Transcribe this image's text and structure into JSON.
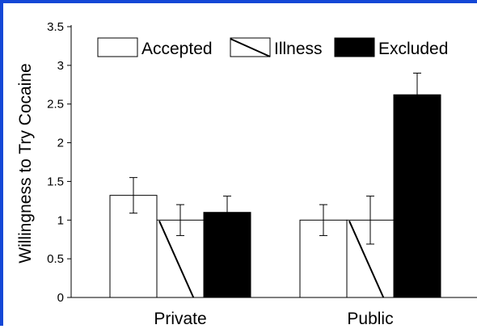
{
  "chart_data": {
    "type": "bar",
    "title": "",
    "xlabel": "",
    "ylabel": "Willingness to Try Cocaine",
    "categories": [
      "Private",
      "Public"
    ],
    "ylim": [
      0,
      3.5
    ],
    "yticks": [
      "0",
      "0.5",
      "1",
      "1.5",
      "2",
      "2.5",
      "3",
      "3.5"
    ],
    "series": [
      {
        "name": "Accepted",
        "values": [
          1.32,
          1.0
        ],
        "errors": [
          0.23,
          0.2
        ],
        "fill": "#ffffff",
        "pattern": "none"
      },
      {
        "name": "Illness",
        "values": [
          1.0,
          1.0
        ],
        "errors": [
          0.2,
          0.31
        ],
        "fill": "#ffffff",
        "pattern": "diagonal"
      },
      {
        "name": "Excluded",
        "values": [
          1.1,
          2.62
        ],
        "errors": [
          0.21,
          0.28
        ],
        "fill": "#000000",
        "pattern": "none"
      }
    ],
    "legend": "top",
    "grid": false
  },
  "frame_color": "#1447d6"
}
